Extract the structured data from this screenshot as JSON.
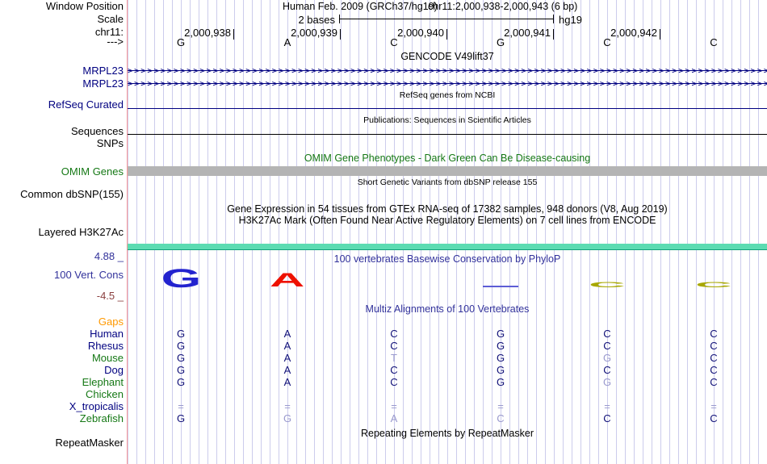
{
  "colors": {
    "navy": "#000080",
    "green": "#157815",
    "orange": "#ff9900",
    "title_blue": "#32329b",
    "dark_red": "#8b4040",
    "letter_dark": "#101078",
    "letter_light": "#9a9ace",
    "cons_blue": "#2323cf",
    "cons_red": "#ee1100",
    "cons_olive": "#a8a800",
    "cons_flat": "#5d5dd5",
    "gray_bar": "#b4b4b4",
    "teal_bar": "#5cdcb2",
    "grid_line": "#ccccec",
    "separator": "#ff9b9b"
  },
  "header": {
    "window_position_label": "Window Position",
    "assembly_title": "Human Feb. 2009 (GRCh37/hg19)",
    "position_title": "chr11:2,000,938-2,000,943 (6 bp)",
    "scale_label": "Scale",
    "scale_value": "2 bases",
    "genome": "hg19",
    "chrom_label": "chr11:",
    "strand_label": "--->",
    "coordinates": [
      "2,000,938",
      "2,000,939",
      "2,000,940",
      "2,000,941",
      "2,000,942"
    ],
    "bases": [
      "G",
      "A",
      "C",
      "G",
      "C",
      "C"
    ]
  },
  "tracks": {
    "gencode": {
      "title": "GENCODE V49lift37",
      "gene_rows": [
        {
          "label": "MRPL23"
        },
        {
          "label": "MRPL23"
        }
      ]
    },
    "refseq": {
      "title": "RefSeq genes from NCBI",
      "label": "RefSeq Curated"
    },
    "publications": {
      "title": "Publications: Sequences in Scientific Articles",
      "label": "Sequences"
    },
    "snps": {
      "label": "SNPs"
    },
    "omim": {
      "title": "OMIM Gene Phenotypes - Dark Green Can Be Disease-causing",
      "label": "OMIM Genes"
    },
    "dbsnp": {
      "title": "Short Genetic Variants from dbSNP release 155",
      "label": "Common dbSNP(155)"
    },
    "gtex": {
      "title": "Gene Expression in 54 tissues from GTEx RNA-seq of 17382 samples, 948 donors (V8, Aug 2019)"
    },
    "h3k27ac": {
      "title": "H3K27Ac Mark (Often Found Near Active Regulatory Elements) on 7 cell lines from ENCODE",
      "label": "Layered H3K27Ac"
    },
    "conservation": {
      "title": "100 vertebrates Basewise Conservation by PhyloP",
      "label": "100 Vert. Cons",
      "axis_max": "4.88 _",
      "axis_min": "-4.5 _"
    },
    "multiz": {
      "title": "Multiz Alignments of 100 Vertebrates"
    },
    "repeatmasker": {
      "title": "Repeating Elements by RepeatMasker",
      "label": "RepeatMasker"
    }
  },
  "conservation_glyphs": [
    {
      "col": 0,
      "letter": "G",
      "style": "tall",
      "color": "cons_blue"
    },
    {
      "col": 1,
      "letter": "A",
      "style": "medium",
      "color": "cons_red"
    },
    {
      "col": 3,
      "letter": "",
      "style": "flatline",
      "color": "cons_flat"
    },
    {
      "col": 4,
      "letter": "C",
      "style": "flat",
      "color": "cons_olive"
    },
    {
      "col": 5,
      "letter": "C",
      "style": "flat",
      "color": "cons_olive"
    }
  ],
  "alignment": {
    "rows": [
      {
        "name": "Gaps",
        "label_color": "orange",
        "seq": [
          "",
          "",
          "",
          "",
          "",
          ""
        ],
        "shade": [
          0,
          0,
          0,
          0,
          0,
          0
        ]
      },
      {
        "name": "Human",
        "label_color": "navy",
        "seq": [
          "G",
          "A",
          "C",
          "G",
          "C",
          "C"
        ],
        "shade": [
          0,
          0,
          0,
          0,
          0,
          0
        ]
      },
      {
        "name": "Rhesus",
        "label_color": "navy",
        "seq": [
          "G",
          "A",
          "C",
          "G",
          "C",
          "C"
        ],
        "shade": [
          0,
          0,
          0,
          0,
          0,
          0
        ]
      },
      {
        "name": "Mouse",
        "label_color": "green",
        "seq": [
          "G",
          "A",
          "T",
          "G",
          "G",
          "C"
        ],
        "shade": [
          0,
          0,
          1,
          0,
          1,
          0
        ]
      },
      {
        "name": "Dog",
        "label_color": "navy",
        "seq": [
          "G",
          "A",
          "C",
          "G",
          "C",
          "C"
        ],
        "shade": [
          0,
          0,
          0,
          0,
          0,
          0
        ]
      },
      {
        "name": "Elephant",
        "label_color": "green",
        "seq": [
          "G",
          "A",
          "C",
          "G",
          "G",
          "C"
        ],
        "shade": [
          0,
          0,
          0,
          0,
          1,
          0
        ]
      },
      {
        "name": "Chicken",
        "label_color": "green",
        "seq": [
          "",
          "",
          "",
          "",
          "",
          ""
        ],
        "shade": [
          0,
          0,
          0,
          0,
          0,
          0
        ]
      },
      {
        "name": "X_tropicalis",
        "label_color": "navy",
        "seq": [
          "=",
          "=",
          "=",
          "=",
          "=",
          "="
        ],
        "shade": [
          1,
          1,
          1,
          1,
          1,
          1
        ]
      },
      {
        "name": "Zebrafish",
        "label_color": "green",
        "seq": [
          "G",
          "G",
          "A",
          "C",
          "C",
          "C"
        ],
        "shade": [
          0,
          1,
          1,
          1,
          0,
          0
        ]
      }
    ]
  },
  "decorations": {
    "gene_arrow_char": ">",
    "gene_arrow_count": 100
  }
}
